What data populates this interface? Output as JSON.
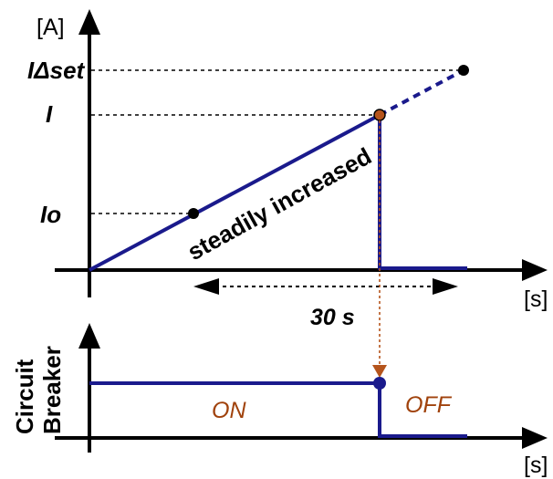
{
  "top_plot": {
    "y_unit": "[A]",
    "x_unit": "[s]",
    "levels": {
      "trip_setting": "IΔset",
      "trip_current": "I",
      "start_current": "Io"
    },
    "ramp_label": "steadily increased",
    "duration_label": "30 s"
  },
  "bottom_plot": {
    "side_label_line1": "Circuit",
    "side_label_line2": "Breaker",
    "x_unit": "[s]",
    "state_on": "ON",
    "state_off": "OFF"
  },
  "colors": {
    "signal": "#1a1a8c",
    "marker_trip": "#b5541c",
    "state_text": "#a0420c",
    "axis": "#000000"
  }
}
